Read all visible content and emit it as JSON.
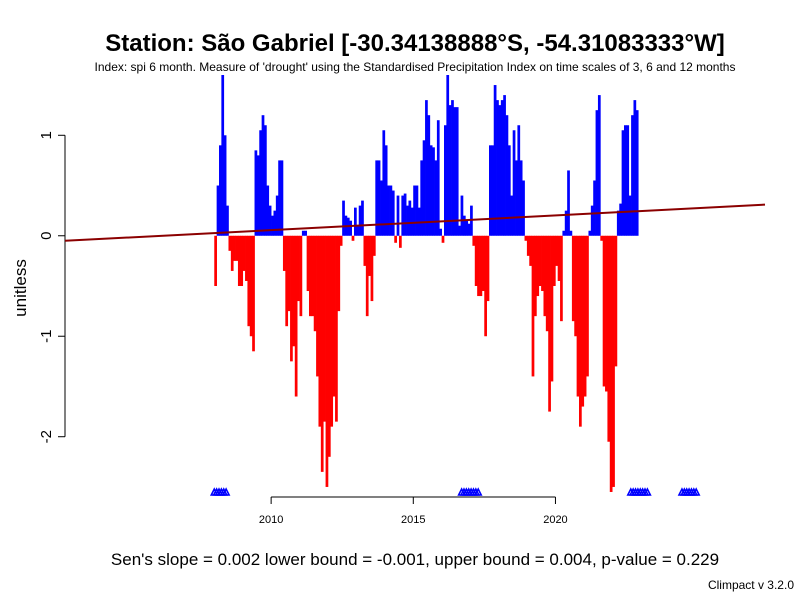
{
  "title": "Station: São Gabriel [-30.34138888°S, -54.31083333°W]",
  "subtitle": "Index: spi 6 month. Measure of 'drought' using the Standardised Precipitation Index on time scales of 3, 6 and 12 months",
  "footer": "Sen's slope = 0.002   lower bound = -0.001,   upper bound = 0.004,   p-value = 0.229",
  "credit": "Climpact v 3.2.0",
  "colors": {
    "positive": "#0000ff",
    "negative": "#ff0000",
    "trend": "#8b0000",
    "missing": "#0000ff"
  },
  "chart_data": {
    "type": "bar",
    "ylabel": "unitless",
    "xlim": [
      2002.75,
      2027.37
    ],
    "ylim": [
      -2.6,
      1.6
    ],
    "x_ticks": [
      2010,
      2015,
      2020
    ],
    "y_ticks": [
      1,
      0,
      -1,
      -2
    ],
    "start": 2008.0,
    "step": 0.0833,
    "values": [
      -0.5,
      0.5,
      0.9,
      1.6,
      1.0,
      0.3,
      -0.15,
      -0.35,
      -0.25,
      -0.25,
      -0.5,
      -0.5,
      -0.35,
      -0.45,
      -0.9,
      -1.0,
      -1.15,
      0.85,
      0.8,
      1.05,
      1.2,
      1.1,
      0.5,
      0.3,
      0.2,
      0.25,
      0.4,
      0.75,
      0.75,
      -0.35,
      -0.9,
      -0.75,
      -1.25,
      -1.1,
      -1.6,
      -0.65,
      -0.8,
      0.05,
      0.05,
      -0.55,
      -0.8,
      -0.8,
      -0.95,
      -1.4,
      -1.9,
      -2.35,
      -1.85,
      -2.5,
      -2.2,
      -1.9,
      -1.6,
      -1.85,
      -0.75,
      -0.1,
      0.35,
      0.2,
      0.18,
      0.15,
      -0.05,
      0.28,
      0.1,
      0.3,
      0.35,
      -0.3,
      -0.8,
      -0.4,
      -0.65,
      -0.2,
      0.75,
      0.75,
      0.55,
      1.05,
      0.9,
      0.5,
      0.5,
      0.45,
      -0.07,
      0.4,
      -0.12,
      0.4,
      0.42,
      0.3,
      0.35,
      0.28,
      0.5,
      0.5,
      0.28,
      0.75,
      0.95,
      1.35,
      1.2,
      0.9,
      0.88,
      0.75,
      1.15,
      0.07,
      -0.07,
      1.1,
      1.6,
      1.3,
      1.35,
      1.28,
      1.28,
      0.1,
      0.4,
      0.2,
      0.15,
      0.12,
      0.3,
      -0.1,
      -0.5,
      -0.6,
      -0.6,
      -0.55,
      -1.0,
      -0.65,
      0.9,
      0.9,
      1.5,
      1.35,
      1.3,
      1.35,
      1.4,
      1.2,
      0.9,
      0.4,
      1.05,
      0.75,
      1.1,
      0.75,
      0.55,
      -0.05,
      -0.2,
      -0.3,
      -1.4,
      -0.8,
      -0.6,
      -0.5,
      -0.55,
      -0.8,
      -0.95,
      -1.75,
      -1.45,
      -0.5,
      -0.3,
      -0.45,
      -0.85,
      0.05,
      0.25,
      0.65,
      0.05,
      -0.85,
      -1.0,
      -1.6,
      -1.9,
      -1.7,
      -1.6,
      -1.4,
      0.05,
      0.3,
      0.55,
      1.25,
      1.4,
      -0.05,
      -1.5,
      -1.55,
      -2.05,
      -2.55,
      -2.5,
      -1.3,
      0.25,
      0.32,
      1.05,
      1.1,
      1.1,
      0.4,
      1.2,
      1.35,
      1.25
    ],
    "missing_runs": [
      [
        2008.0,
        2008.45
      ],
      [
        2016.7,
        2017.35
      ],
      [
        2022.65,
        2023.25
      ],
      [
        2024.45,
        2024.95
      ]
    ],
    "trend": {
      "x": [
        2002.75,
        2027.37
      ],
      "y": [
        -0.05,
        0.31
      ]
    }
  }
}
